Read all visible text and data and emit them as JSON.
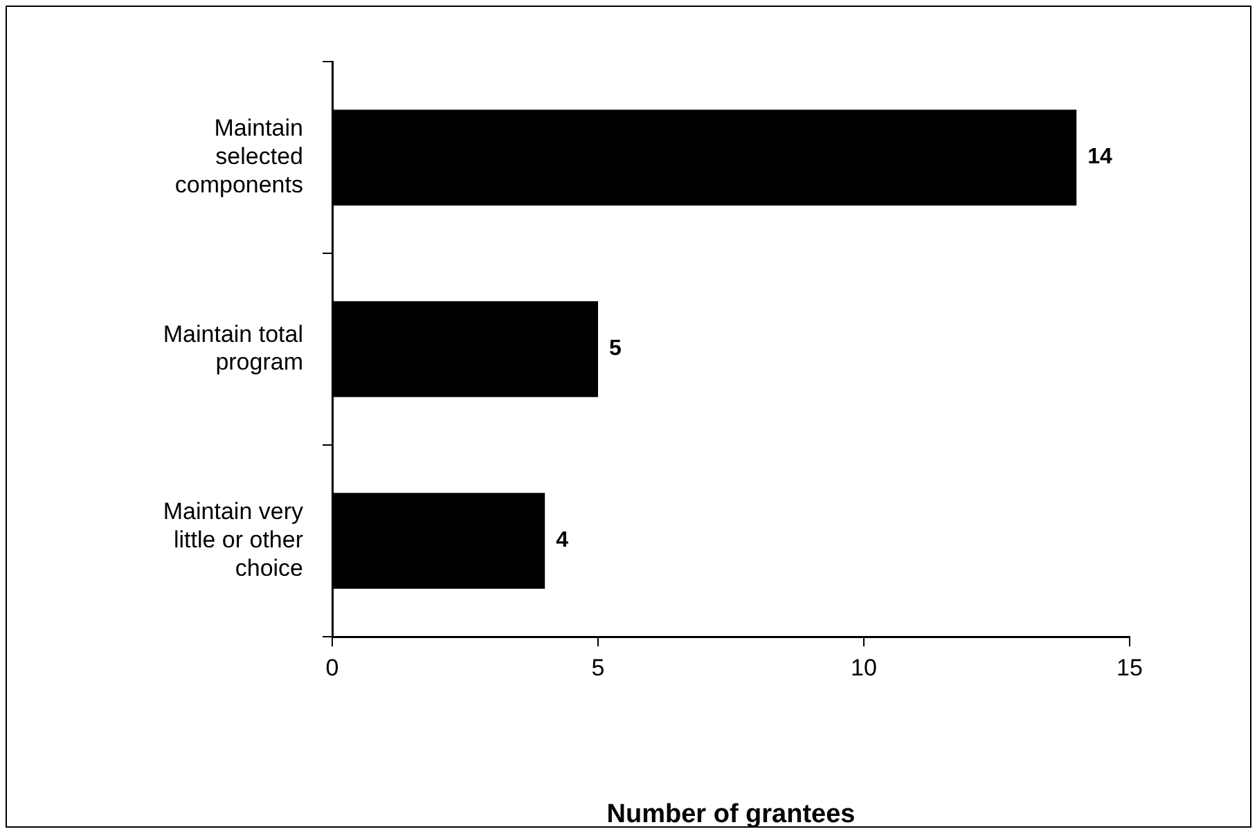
{
  "chart_data": {
    "type": "bar",
    "orientation": "horizontal",
    "xlabel": "Number of grantees",
    "categories": [
      "Maintain selected components",
      "Maintain total program",
      "Maintain very little or other choice"
    ],
    "values": [
      14,
      5,
      4
    ],
    "color": "#000000",
    "xlim": [
      0,
      15
    ],
    "xticks": [
      0,
      5,
      10,
      15
    ],
    "grid": false,
    "legend": false,
    "data_labels": true
  }
}
